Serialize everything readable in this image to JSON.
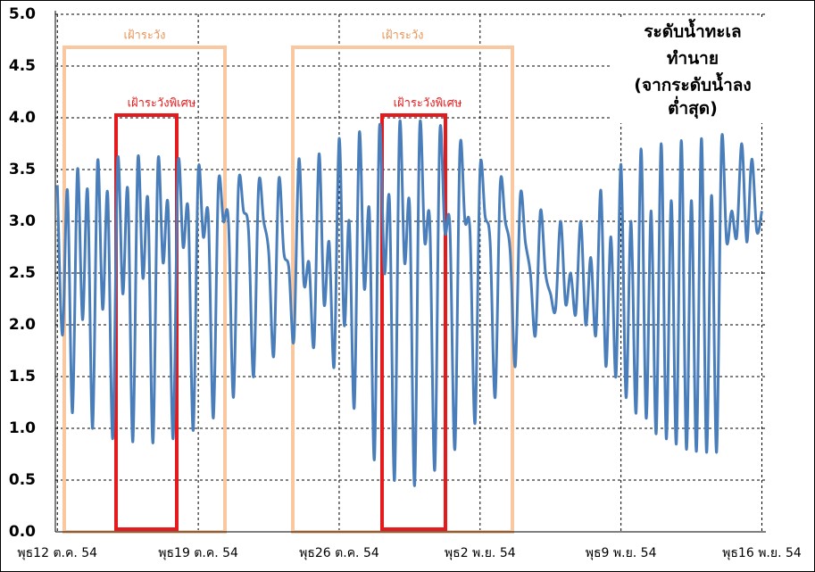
{
  "chart_data": {
    "type": "line",
    "title_lines": [
      "ระดับน้ำทะเล",
      "ทำนาย",
      "(จากระดับน้ำลง",
      "ต่ำสุด)"
    ],
    "annotations": {
      "watch": [
        "เฝ้าระวัง",
        "เฝ้าระวัง"
      ],
      "special_watch": [
        "เฝ้าระวังพิเศษ",
        "เฝ้าระวังพิเศษ"
      ]
    },
    "x": [
      0,
      0.25,
      0.5,
      0.75,
      1,
      1.25,
      1.5,
      1.75,
      2,
      2.25,
      2.5,
      2.75,
      3,
      3.25,
      3.5,
      3.75,
      4,
      4.25,
      4.5,
      4.75,
      5,
      5.25,
      5.5,
      5.75,
      6,
      6.25,
      6.5,
      6.75,
      7,
      7.25,
      7.5,
      7.75,
      8,
      8.25,
      8.5,
      8.75,
      9,
      9.25,
      9.5,
      9.75,
      10,
      10.25,
      10.5,
      10.75,
      11,
      11.25,
      11.5,
      11.75,
      12,
      12.25,
      12.5,
      12.75,
      13,
      13.25,
      13.5,
      13.75,
      14,
      14.25,
      14.5,
      14.75,
      15,
      15.25,
      15.5,
      15.75,
      16,
      16.25,
      16.5,
      16.75,
      17,
      17.25,
      17.5,
      17.75,
      18,
      18.25,
      18.5,
      18.75,
      19,
      19.25,
      19.5,
      19.75,
      20,
      20.25,
      20.5,
      20.75,
      21,
      21.25,
      21.5,
      21.75,
      22,
      22.25,
      22.5,
      22.75,
      23,
      23.25,
      23.5,
      23.75,
      24,
      24.25,
      24.5,
      24.75,
      25,
      25.25,
      25.5,
      25.75,
      26,
      26.25,
      26.5,
      26.75,
      27,
      27.25,
      27.5,
      27.75,
      28,
      28.25,
      28.5,
      28.75,
      29,
      29.25,
      29.5,
      29.75,
      30,
      30.25,
      30.5,
      30.75,
      31,
      31.25,
      31.5,
      31.75,
      32,
      32.25,
      32.5,
      32.75,
      33,
      33.25,
      33.5,
      33.75,
      34,
      34.25,
      34.5,
      34.75,
      35
    ],
    "series": [
      {
        "name": "ระดับน้ำทะเลทำนาย",
        "color": "#4a7ebb",
        "values": [
          3.35,
          1.9,
          3.3,
          1.15,
          3.5,
          2.05,
          3.3,
          1.0,
          3.58,
          2.15,
          3.27,
          0.9,
          3.6,
          2.3,
          3.3,
          0.87,
          3.6,
          2.45,
          3.2,
          0.86,
          3.58,
          2.6,
          3.15,
          0.9,
          3.55,
          2.75,
          3.1,
          0.98,
          3.48,
          2.85,
          3.05,
          1.1,
          3.35,
          3.0,
          3.0,
          1.3,
          3.35,
          3.1,
          2.9,
          1.5,
          3.35,
          3.0,
          2.7,
          1.7,
          3.4,
          2.7,
          2.55,
          1.85,
          3.6,
          2.4,
          2.6,
          1.8,
          3.65,
          2.2,
          2.8,
          1.6,
          3.8,
          2.0,
          3.0,
          1.2,
          3.85,
          2.35,
          3.1,
          0.7,
          3.9,
          2.5,
          3.2,
          0.5,
          3.92,
          2.6,
          3.15,
          0.45,
          3.9,
          2.8,
          3.0,
          0.6,
          3.85,
          2.9,
          2.95,
          0.8,
          3.7,
          3.0,
          2.9,
          1.05,
          3.5,
          3.05,
          2.8,
          1.3,
          3.35,
          3.0,
          2.7,
          1.6,
          3.25,
          2.8,
          2.5,
          1.9,
          3.1,
          2.5,
          2.3,
          2.15,
          3.0,
          2.2,
          2.5,
          2.1,
          3.0,
          2.0,
          2.65,
          1.9,
          3.3,
          1.6,
          2.85,
          1.5,
          3.55,
          1.3,
          3.0,
          1.15,
          3.7,
          1.1,
          3.1,
          0.95,
          3.75,
          0.9,
          3.2,
          0.85,
          3.78,
          0.8,
          3.2,
          0.78,
          3.8,
          0.77,
          3.25,
          0.77,
          3.78,
          2.8,
          3.1,
          2.85,
          3.75,
          2.8,
          3.6,
          2.9,
          3.1
        ]
      }
    ],
    "xlim": [
      -0.1,
      35.2
    ],
    "xticks": [
      {
        "value": 0,
        "label": "พุธ12 ต.ค. 54"
      },
      {
        "value": 7,
        "label": "พุธ19 ต.ค. 54"
      },
      {
        "value": 14,
        "label": "พุธ26 ต.ค. 54"
      },
      {
        "value": 21,
        "label": "พุธ2 พ.ย. 54"
      },
      {
        "value": 28,
        "label": "พุธ9 พ.ย. 54"
      },
      {
        "value": 35,
        "label": "พุธ16 พ.ย. 54"
      }
    ],
    "ylim": [
      0,
      5
    ],
    "yticks": [
      {
        "value": 0,
        "label": "0.0"
      },
      0.5,
      {
        "value": 1,
        "label": "1.0"
      },
      1.5,
      {
        "value": 2,
        "label": "2.0"
      },
      2.5,
      {
        "value": 3,
        "label": "3.0"
      },
      3.5,
      {
        "value": 4,
        "label": "4.0"
      },
      4.5,
      {
        "value": 5,
        "label": "5.0"
      }
    ],
    "grid": true
  }
}
